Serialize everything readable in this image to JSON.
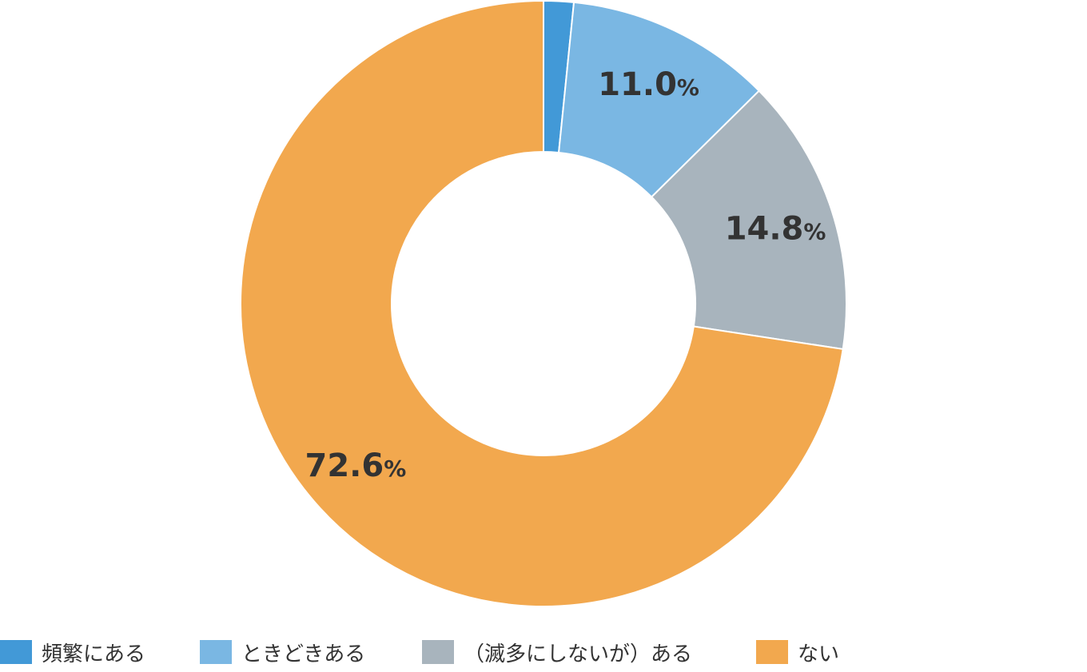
{
  "chart_data": {
    "type": "pie",
    "donut": true,
    "categories": [
      "頻繁にある",
      "ときどきある",
      "（滅多にしないが）ある",
      "ない"
    ],
    "values": [
      1.6,
      11.0,
      14.8,
      72.6
    ],
    "colors": [
      "#4299d7",
      "#7ab7e3",
      "#a8b4bd",
      "#f2a84e"
    ],
    "labels": [
      {
        "num": "",
        "pct": ""
      },
      {
        "num": "11.0",
        "pct": "%"
      },
      {
        "num": "14.8",
        "pct": "%"
      },
      {
        "num": "72.6",
        "pct": "%"
      }
    ],
    "legend_position": "bottom"
  }
}
